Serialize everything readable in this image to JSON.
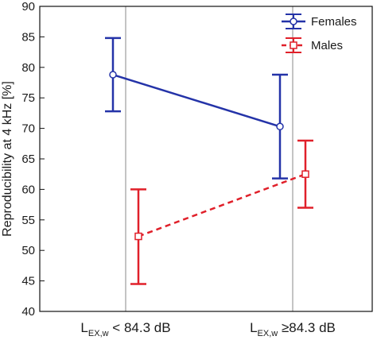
{
  "chart_data": {
    "type": "line",
    "title": "",
    "xlabel": "",
    "ylabel": "Reproducibility at 4 kHz [%]",
    "ylim": [
      40,
      90
    ],
    "yticks": [
      40,
      45,
      50,
      55,
      60,
      65,
      70,
      75,
      80,
      85,
      90
    ],
    "grid": "vertical lines at categories",
    "legend_position": "top-right",
    "categories": [
      {
        "main": "L",
        "sub": "EX,w",
        "rest": " < 84.3 dB"
      },
      {
        "main": "L",
        "sub": "EX,w",
        "rest": " ≥84.3 dB"
      }
    ],
    "series": [
      {
        "name": "Females",
        "color": "#2433a8",
        "marker": "circle",
        "line_style": "solid",
        "values": [
          78.8,
          70.3
        ],
        "error_low": [
          72.8,
          61.8
        ],
        "error_high": [
          84.8,
          78.8
        ]
      },
      {
        "name": "Males",
        "color": "#e0202a",
        "marker": "square",
        "line_style": "dashed",
        "values": [
          52.3,
          62.5
        ],
        "error_low": [
          44.5,
          57.0
        ],
        "error_high": [
          60.0,
          68.0
        ]
      }
    ]
  }
}
